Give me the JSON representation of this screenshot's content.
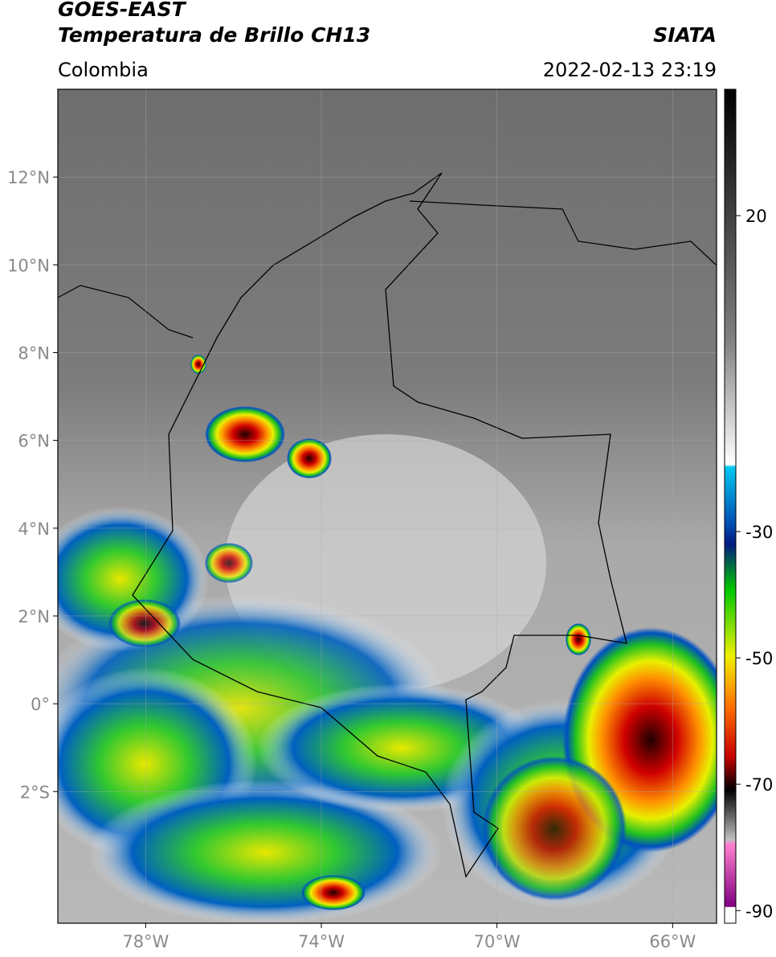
{
  "header": {
    "title_line1": "GOES-EAST",
    "title_line2": "Temperatura de Brillo CH13",
    "source": "SIATA",
    "region": "Colombia",
    "datetime": "2022-02-13 23:19"
  },
  "map": {
    "xlim": [
      -80,
      -65
    ],
    "ylim": [
      -5,
      14
    ],
    "xticks": [
      {
        "value": -78,
        "label": "78°W"
      },
      {
        "value": -74,
        "label": "74°W"
      },
      {
        "value": -70,
        "label": "70°W"
      },
      {
        "value": -66,
        "label": "66°W"
      }
    ],
    "yticks": [
      {
        "value": 12,
        "label": "12°N"
      },
      {
        "value": 10,
        "label": "10°N"
      },
      {
        "value": 8,
        "label": "8°N"
      },
      {
        "value": 6,
        "label": "6°N"
      },
      {
        "value": 4,
        "label": "4°N"
      },
      {
        "value": 2,
        "label": "2°N"
      },
      {
        "value": 0,
        "label": "0°"
      },
      {
        "value": -2,
        "label": "2°S"
      }
    ]
  },
  "colorbar": {
    "lim": [
      -92,
      40
    ],
    "ticks": [
      20,
      -30,
      -50,
      -70,
      -90
    ]
  }
}
